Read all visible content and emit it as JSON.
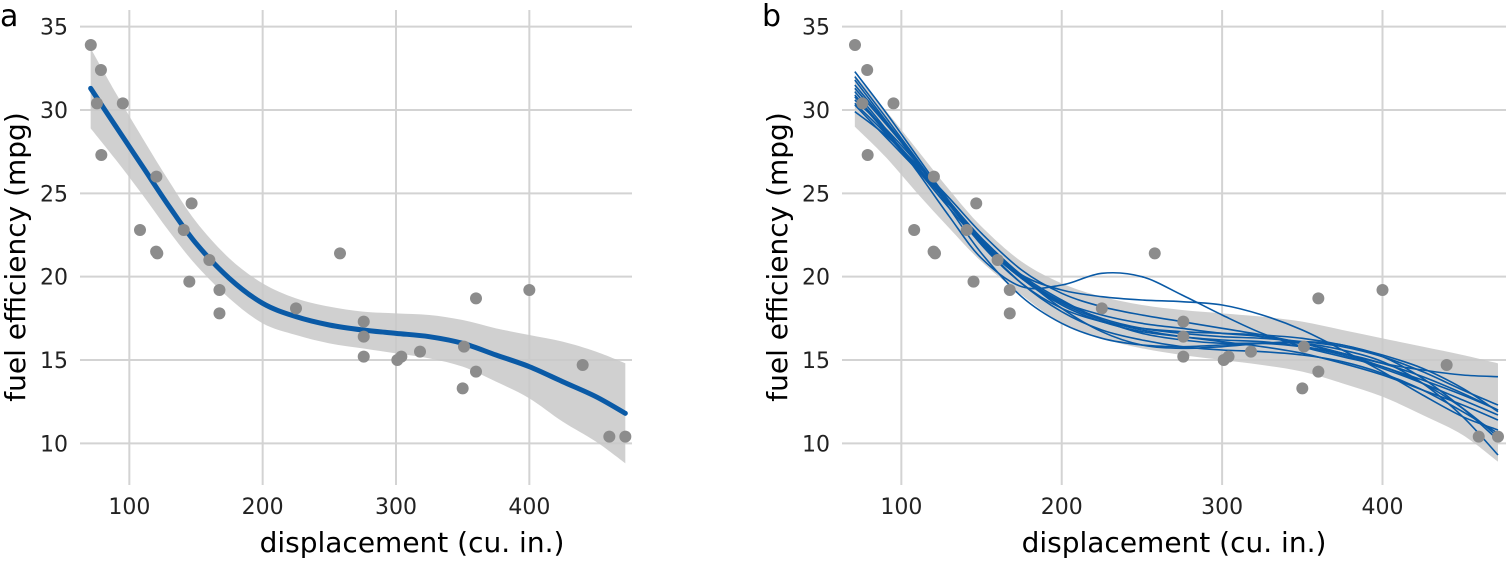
{
  "chart_data": [
    {
      "type": "scatter",
      "panel_label": "a",
      "title": "",
      "xlabel": "displacement (cu. in.)",
      "ylabel": "fuel efficiency (mpg)",
      "xlim": [
        63,
        477
      ],
      "ylim": [
        7.5,
        36
      ],
      "x_ticks": [
        100,
        200,
        300,
        400
      ],
      "y_ticks": [
        10,
        15,
        20,
        25,
        30,
        35
      ],
      "points": {
        "x": [
          71.1,
          75.7,
          78.7,
          79.0,
          95.1,
          108,
          120.1,
          120.3,
          121,
          140.8,
          145,
          146.7,
          160,
          167.6,
          167.6,
          225,
          258,
          275.8,
          275.8,
          275.8,
          301,
          304,
          318,
          350,
          351,
          360,
          360,
          400,
          440,
          460,
          472
        ],
        "y": [
          33.9,
          30.4,
          32.4,
          27.3,
          30.4,
          22.8,
          21.5,
          26.0,
          21.4,
          22.8,
          19.7,
          24.4,
          21.0,
          19.2,
          17.8,
          18.1,
          21.4,
          16.4,
          17.3,
          15.2,
          15.0,
          15.2,
          15.5,
          13.3,
          15.8,
          18.7,
          14.3,
          19.2,
          14.7,
          10.4,
          10.4
        ]
      },
      "fit": {
        "name": "smooth fit",
        "x": [
          71,
          90,
          110,
          130,
          150,
          175,
          200,
          225,
          250,
          275,
          300,
          325,
          350,
          375,
          400,
          425,
          450,
          472
        ],
        "y": [
          31.3,
          29.0,
          26.6,
          24.2,
          22.0,
          19.9,
          18.4,
          17.6,
          17.1,
          16.8,
          16.6,
          16.4,
          16.0,
          15.3,
          14.6,
          13.7,
          12.8,
          11.8
        ]
      },
      "band": {
        "name": "confidence band",
        "x": [
          71,
          90,
          110,
          130,
          150,
          175,
          200,
          225,
          250,
          275,
          300,
          325,
          350,
          375,
          400,
          425,
          450,
          472
        ],
        "upper": [
          33.7,
          31.0,
          28.3,
          25.7,
          23.3,
          21.1,
          19.6,
          18.7,
          18.2,
          17.9,
          17.8,
          17.7,
          17.4,
          16.9,
          16.5,
          16.1,
          15.5,
          14.8
        ],
        "lower": [
          28.9,
          27.0,
          24.9,
          22.7,
          20.7,
          18.7,
          17.2,
          16.5,
          16.0,
          15.7,
          15.4,
          15.1,
          14.6,
          13.7,
          12.7,
          11.3,
          10.1,
          8.8
        ]
      }
    },
    {
      "type": "scatter",
      "panel_label": "b",
      "title": "",
      "xlabel": "displacement (cu. in.)",
      "ylabel": "fuel efficiency (mpg)",
      "xlim": [
        63,
        477
      ],
      "ylim": [
        7.5,
        36
      ],
      "x_ticks": [
        100,
        200,
        300,
        400
      ],
      "y_ticks": [
        10,
        15,
        20,
        25,
        30,
        35
      ],
      "points": {
        "x": [
          71.1,
          75.7,
          78.7,
          79.0,
          95.1,
          108,
          120.1,
          120.3,
          121,
          140.8,
          145,
          146.7,
          160,
          167.6,
          167.6,
          225,
          258,
          275.8,
          275.8,
          275.8,
          301,
          304,
          318,
          350,
          351,
          360,
          360,
          400,
          440,
          460,
          472
        ],
        "y": [
          33.9,
          30.4,
          32.4,
          27.3,
          30.4,
          22.8,
          21.5,
          26.0,
          21.4,
          22.8,
          19.7,
          24.4,
          21.0,
          19.2,
          17.8,
          18.1,
          21.4,
          16.4,
          17.3,
          15.2,
          15.0,
          15.2,
          15.5,
          13.3,
          15.8,
          18.7,
          14.3,
          19.2,
          14.7,
          10.4,
          10.4
        ]
      },
      "band": {
        "name": "confidence band",
        "x": [
          71,
          90,
          110,
          130,
          150,
          175,
          200,
          225,
          250,
          275,
          300,
          325,
          350,
          375,
          400,
          425,
          450,
          472
        ],
        "upper": [
          32.1,
          30.0,
          27.6,
          25.2,
          23.0,
          20.9,
          19.6,
          18.8,
          18.3,
          18.0,
          17.8,
          17.6,
          17.3,
          16.8,
          16.3,
          15.8,
          15.3,
          14.8
        ],
        "lower": [
          29.0,
          27.2,
          25.0,
          22.9,
          20.9,
          18.9,
          17.2,
          16.3,
          15.7,
          15.3,
          15.0,
          14.7,
          14.3,
          13.6,
          12.8,
          11.7,
          10.5,
          8.9
        ]
      },
      "bootstrap_fits": {
        "x": [
          71,
          90,
          110,
          130,
          150,
          175,
          200,
          225,
          250,
          275,
          300,
          325,
          350,
          375,
          400,
          425,
          450,
          472
        ],
        "series": [
          {
            "name": "fit 1",
            "values": [
              31.5,
              29.3,
              26.8,
              24.3,
              22.0,
              19.9,
              18.5,
              17.7,
              17.2,
              16.9,
              16.6,
              16.4,
              16.0,
              15.4,
              14.6,
              13.8,
              12.9,
              12.0
            ]
          },
          {
            "name": "fit 2",
            "values": [
              30.8,
              28.7,
              26.5,
              24.3,
              22.3,
              20.1,
              18.6,
              17.4,
              16.6,
              16.2,
              16.0,
              16.0,
              15.8,
              15.4,
              14.8,
              14.0,
              13.0,
              12.0
            ]
          },
          {
            "name": "fit 3",
            "values": [
              32.0,
              29.6,
              27.0,
              24.4,
              21.9,
              19.6,
              18.1,
              17.3,
              16.9,
              16.7,
              16.6,
              16.5,
              16.3,
              15.9,
              15.3,
              14.5,
              13.3,
              11.9
            ]
          },
          {
            "name": "fit 4",
            "values": [
              30.3,
              28.4,
              26.4,
              24.4,
              22.3,
              20.0,
              18.1,
              16.7,
              15.9,
              15.7,
              15.8,
              16.0,
              16.1,
              15.9,
              15.2,
              13.9,
              12.1,
              10.2
            ]
          },
          {
            "name": "fit 5",
            "values": [
              31.8,
              29.4,
              26.9,
              24.1,
              21.4,
              18.8,
              17.2,
              16.3,
              15.9,
              15.8,
              15.9,
              16.0,
              16.0,
              15.6,
              14.9,
              13.6,
              11.6,
              9.3
            ]
          },
          {
            "name": "fit 6",
            "values": [
              29.9,
              28.5,
              26.7,
              24.7,
              22.6,
              20.4,
              19.0,
              18.2,
              17.7,
              17.3,
              16.9,
              16.5,
              16.0,
              15.4,
              14.8,
              14.4,
              14.1,
              14.0
            ]
          },
          {
            "name": "fit 7",
            "values": [
              30.6,
              28.9,
              26.8,
              24.5,
              22.3,
              20.0,
              18.5,
              17.5,
              16.9,
              16.6,
              16.4,
              16.3,
              16.1,
              15.8,
              15.2,
              14.3,
              13.2,
              12.3
            ]
          },
          {
            "name": "fit 8",
            "values": [
              31.1,
              28.9,
              26.3,
              23.6,
              21.1,
              19.4,
              19.5,
              20.2,
              20.0,
              18.9,
              17.7,
              16.6,
              15.8,
              15.2,
              14.6,
              13.6,
              12.1,
              10.4
            ]
          },
          {
            "name": "fit 9",
            "values": [
              30.4,
              28.6,
              26.4,
              24.1,
              22.0,
              20.1,
              19.2,
              18.8,
              18.6,
              18.5,
              18.3,
              17.7,
              16.8,
              15.6,
              14.3,
              12.9,
              11.6,
              10.8
            ]
          },
          {
            "name": "fit 10",
            "values": [
              32.3,
              29.9,
              27.2,
              24.5,
              22.0,
              19.6,
              17.9,
              16.8,
              16.2,
              15.8,
              15.6,
              15.5,
              15.3,
              14.9,
              14.2,
              13.2,
              11.9,
              10.6
            ]
          },
          {
            "name": "fit 11",
            "values": [
              31.3,
              29.2,
              26.9,
              24.5,
              22.2,
              19.9,
              18.3,
              17.3,
              16.7,
              16.4,
              16.1,
              15.8,
              15.4,
              14.8,
              14.1,
              13.2,
              12.3,
              11.4
            ]
          },
          {
            "name": "fit 12",
            "values": [
              30.9,
              28.8,
              26.6,
              24.3,
              22.1,
              19.9,
              18.4,
              17.4,
              16.8,
              16.4,
              16.2,
              16.1,
              15.8,
              15.3,
              14.5,
              13.6,
              12.6,
              11.7
            ]
          }
        ]
      }
    }
  ]
}
